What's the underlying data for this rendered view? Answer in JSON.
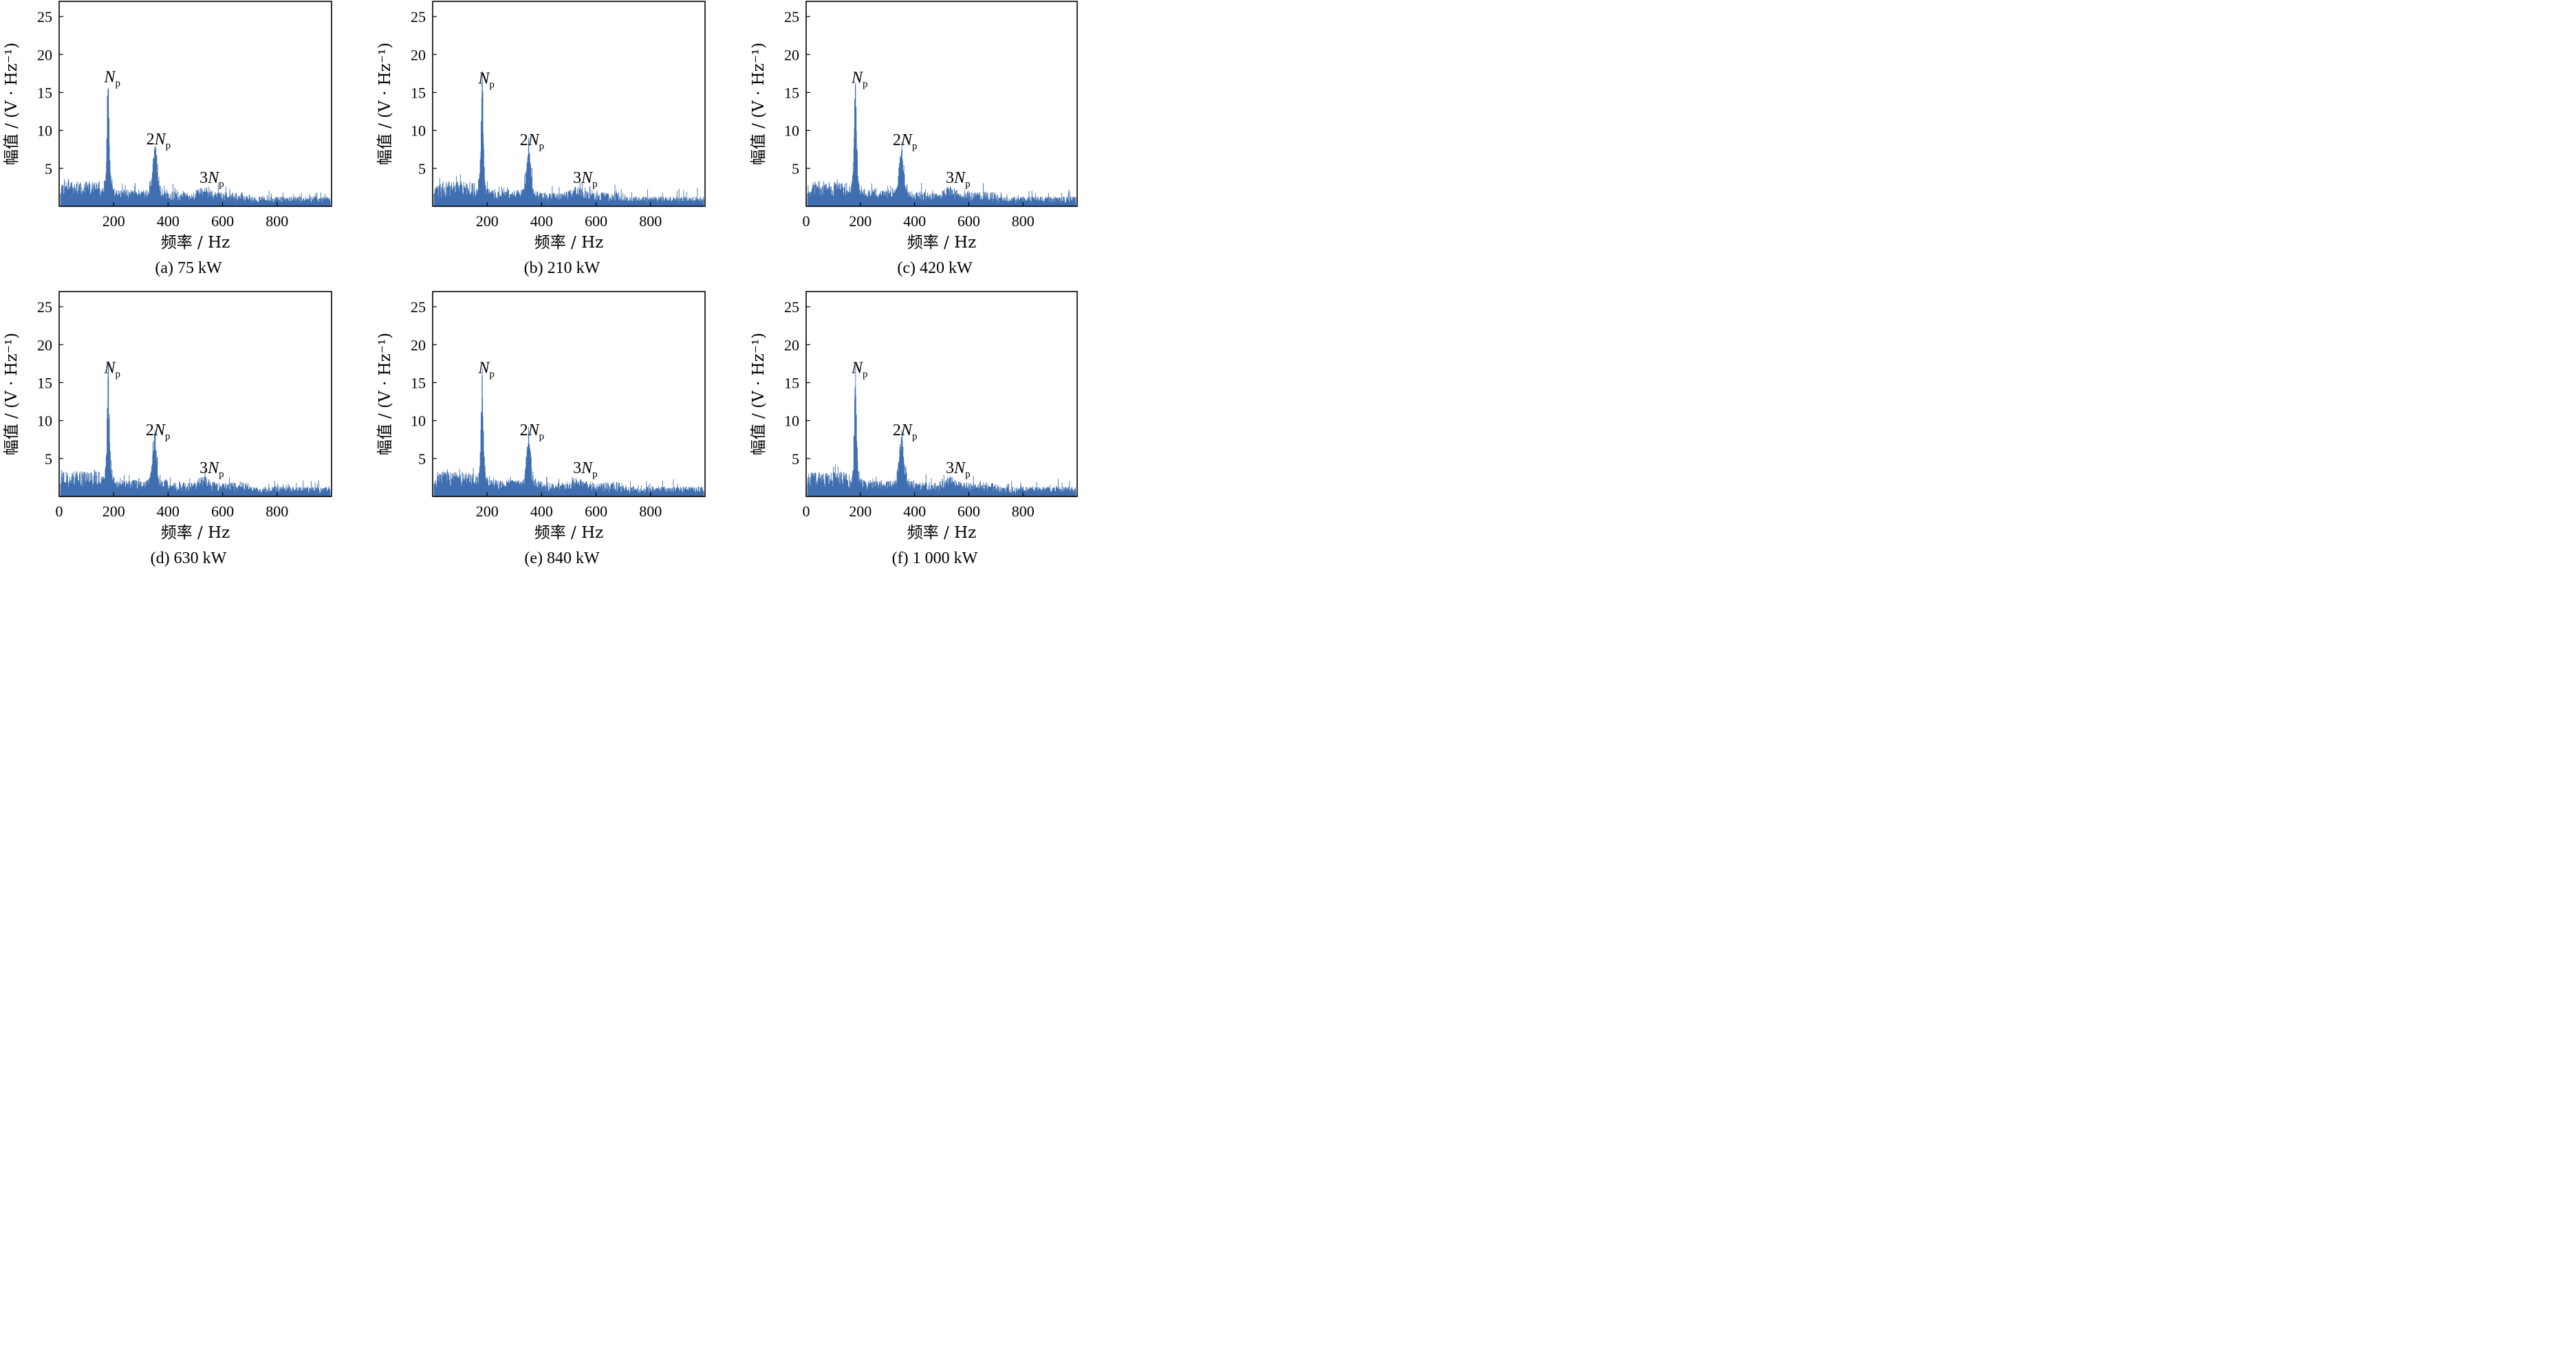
{
  "figure": {
    "colors": {
      "series": "#3f6fb0",
      "axes": "#000000",
      "background": "#ffffff"
    }
  },
  "chart_data": [
    {
      "type": "line",
      "caption": "(a) 75 kW",
      "xlabel": "频率 / Hz",
      "ylabel": "幅值 / (V · Hz⁻¹)",
      "xlim": [
        0,
        1000
      ],
      "ylim": [
        0,
        27
      ],
      "xticks": [
        200,
        400,
        600,
        800
      ],
      "yticks": [
        5,
        10,
        15,
        20,
        25
      ],
      "show_zero_tick": false,
      "grid": false,
      "peaks": [
        {
          "label_num": "",
          "label_var": "N",
          "label_sub": "p",
          "x": 180,
          "y": 14.2
        },
        {
          "label_num": "2",
          "label_var": "N",
          "label_sub": "p",
          "x": 352,
          "y": 6.7
        },
        {
          "label_num": "3",
          "label_var": "N",
          "label_sub": "p",
          "x": 530,
          "y": 1.8
        }
      ],
      "noise_floor": {
        "low_band": [
          20,
          150,
          2.2
        ],
        "mid_band": [
          400,
          700,
          1.4
        ],
        "high_band": [
          700,
          1000,
          0.9
        ]
      },
      "seed": 11
    },
    {
      "type": "line",
      "caption": "(b) 210 kW",
      "xlabel": "频率 / Hz",
      "ylabel": "幅值 / (V · Hz⁻¹)",
      "xlim": [
        0,
        1000
      ],
      "ylim": [
        0,
        27
      ],
      "xticks": [
        200,
        400,
        600,
        800
      ],
      "yticks": [
        5,
        10,
        15,
        20,
        25
      ],
      "show_zero_tick": false,
      "grid": false,
      "peaks": [
        {
          "label_num": "",
          "label_var": "N",
          "label_sub": "p",
          "x": 182,
          "y": 14.0
        },
        {
          "label_num": "2",
          "label_var": "N",
          "label_sub": "p",
          "x": 352,
          "y": 6.6
        },
        {
          "label_num": "3",
          "label_var": "N",
          "label_sub": "p",
          "x": 530,
          "y": 1.8
        }
      ],
      "noise_floor": {
        "low_band": [
          20,
          150,
          2.2
        ],
        "mid_band": [
          400,
          700,
          1.4
        ],
        "high_band": [
          700,
          1000,
          0.9
        ]
      },
      "seed": 23
    },
    {
      "type": "line",
      "caption": "(c) 420 kW",
      "xlabel": "频率 / Hz",
      "ylabel": "幅值 / (V · Hz⁻¹)",
      "xlim": [
        0,
        1000
      ],
      "ylim": [
        0,
        27
      ],
      "xticks": [
        0,
        200,
        400,
        600,
        800
      ],
      "yticks": [
        5,
        10,
        15,
        20,
        25
      ],
      "show_zero_tick": true,
      "grid": false,
      "peaks": [
        {
          "label_num": "",
          "label_var": "N",
          "label_sub": "p",
          "x": 182,
          "y": 14.1
        },
        {
          "label_num": "2",
          "label_var": "N",
          "label_sub": "p",
          "x": 352,
          "y": 6.6
        },
        {
          "label_num": "3",
          "label_var": "N",
          "label_sub": "p",
          "x": 530,
          "y": 1.8
        }
      ],
      "noise_floor": {
        "low_band": [
          20,
          150,
          2.2
        ],
        "mid_band": [
          400,
          700,
          1.4
        ],
        "high_band": [
          700,
          1000,
          0.9
        ]
      },
      "seed": 37
    },
    {
      "type": "line",
      "caption": "(d) 630 kW",
      "xlabel": "频率 / Hz",
      "ylabel": "幅值 / (V · Hz⁻¹)",
      "xlim": [
        0,
        1000
      ],
      "ylim": [
        0,
        27
      ],
      "xticks": [
        0,
        200,
        400,
        600,
        800
      ],
      "yticks": [
        5,
        10,
        15,
        20,
        25
      ],
      "show_zero_tick": true,
      "grid": false,
      "peaks": [
        {
          "label_num": "",
          "label_var": "N",
          "label_sub": "p",
          "x": 180,
          "y": 14.1
        },
        {
          "label_num": "2",
          "label_var": "N",
          "label_sub": "p",
          "x": 350,
          "y": 6.6
        },
        {
          "label_num": "3",
          "label_var": "N",
          "label_sub": "p",
          "x": 530,
          "y": 1.8
        }
      ],
      "noise_floor": {
        "low_band": [
          20,
          150,
          2.2
        ],
        "mid_band": [
          400,
          700,
          1.4
        ],
        "high_band": [
          700,
          1000,
          0.9
        ]
      },
      "seed": 41
    },
    {
      "type": "line",
      "caption": "(e) 840 kW",
      "xlabel": "频率 / Hz",
      "ylabel": "幅值 / (V · Hz⁻¹)",
      "xlim": [
        0,
        1000
      ],
      "ylim": [
        0,
        27
      ],
      "xticks": [
        200,
        400,
        600,
        800
      ],
      "yticks": [
        5,
        10,
        15,
        20,
        25
      ],
      "show_zero_tick": false,
      "grid": false,
      "peaks": [
        {
          "label_num": "",
          "label_var": "N",
          "label_sub": "p",
          "x": 182,
          "y": 14.1
        },
        {
          "label_num": "2",
          "label_var": "N",
          "label_sub": "p",
          "x": 352,
          "y": 6.6
        },
        {
          "label_num": "3",
          "label_var": "N",
          "label_sub": "p",
          "x": 530,
          "y": 1.8
        }
      ],
      "noise_floor": {
        "low_band": [
          20,
          150,
          2.2
        ],
        "mid_band": [
          400,
          700,
          1.4
        ],
        "high_band": [
          700,
          1000,
          0.9
        ]
      },
      "seed": 53
    },
    {
      "type": "line",
      "caption": "(f) 1 000 kW",
      "xlabel": "频率 / Hz",
      "ylabel": "幅值 / (V · Hz⁻¹)",
      "xlim": [
        0,
        1000
      ],
      "ylim": [
        0,
        27
      ],
      "xticks": [
        0,
        200,
        400,
        600,
        800
      ],
      "yticks": [
        5,
        10,
        15,
        20,
        25
      ],
      "show_zero_tick": true,
      "grid": false,
      "peaks": [
        {
          "label_num": "",
          "label_var": "N",
          "label_sub": "p",
          "x": 182,
          "y": 14.1
        },
        {
          "label_num": "2",
          "label_var": "N",
          "label_sub": "p",
          "x": 352,
          "y": 6.6
        },
        {
          "label_num": "3",
          "label_var": "N",
          "label_sub": "p",
          "x": 530,
          "y": 1.8
        }
      ],
      "noise_floor": {
        "low_band": [
          20,
          150,
          2.2
        ],
        "mid_band": [
          400,
          700,
          1.4
        ],
        "high_band": [
          700,
          1000,
          0.9
        ]
      },
      "seed": 67
    }
  ]
}
